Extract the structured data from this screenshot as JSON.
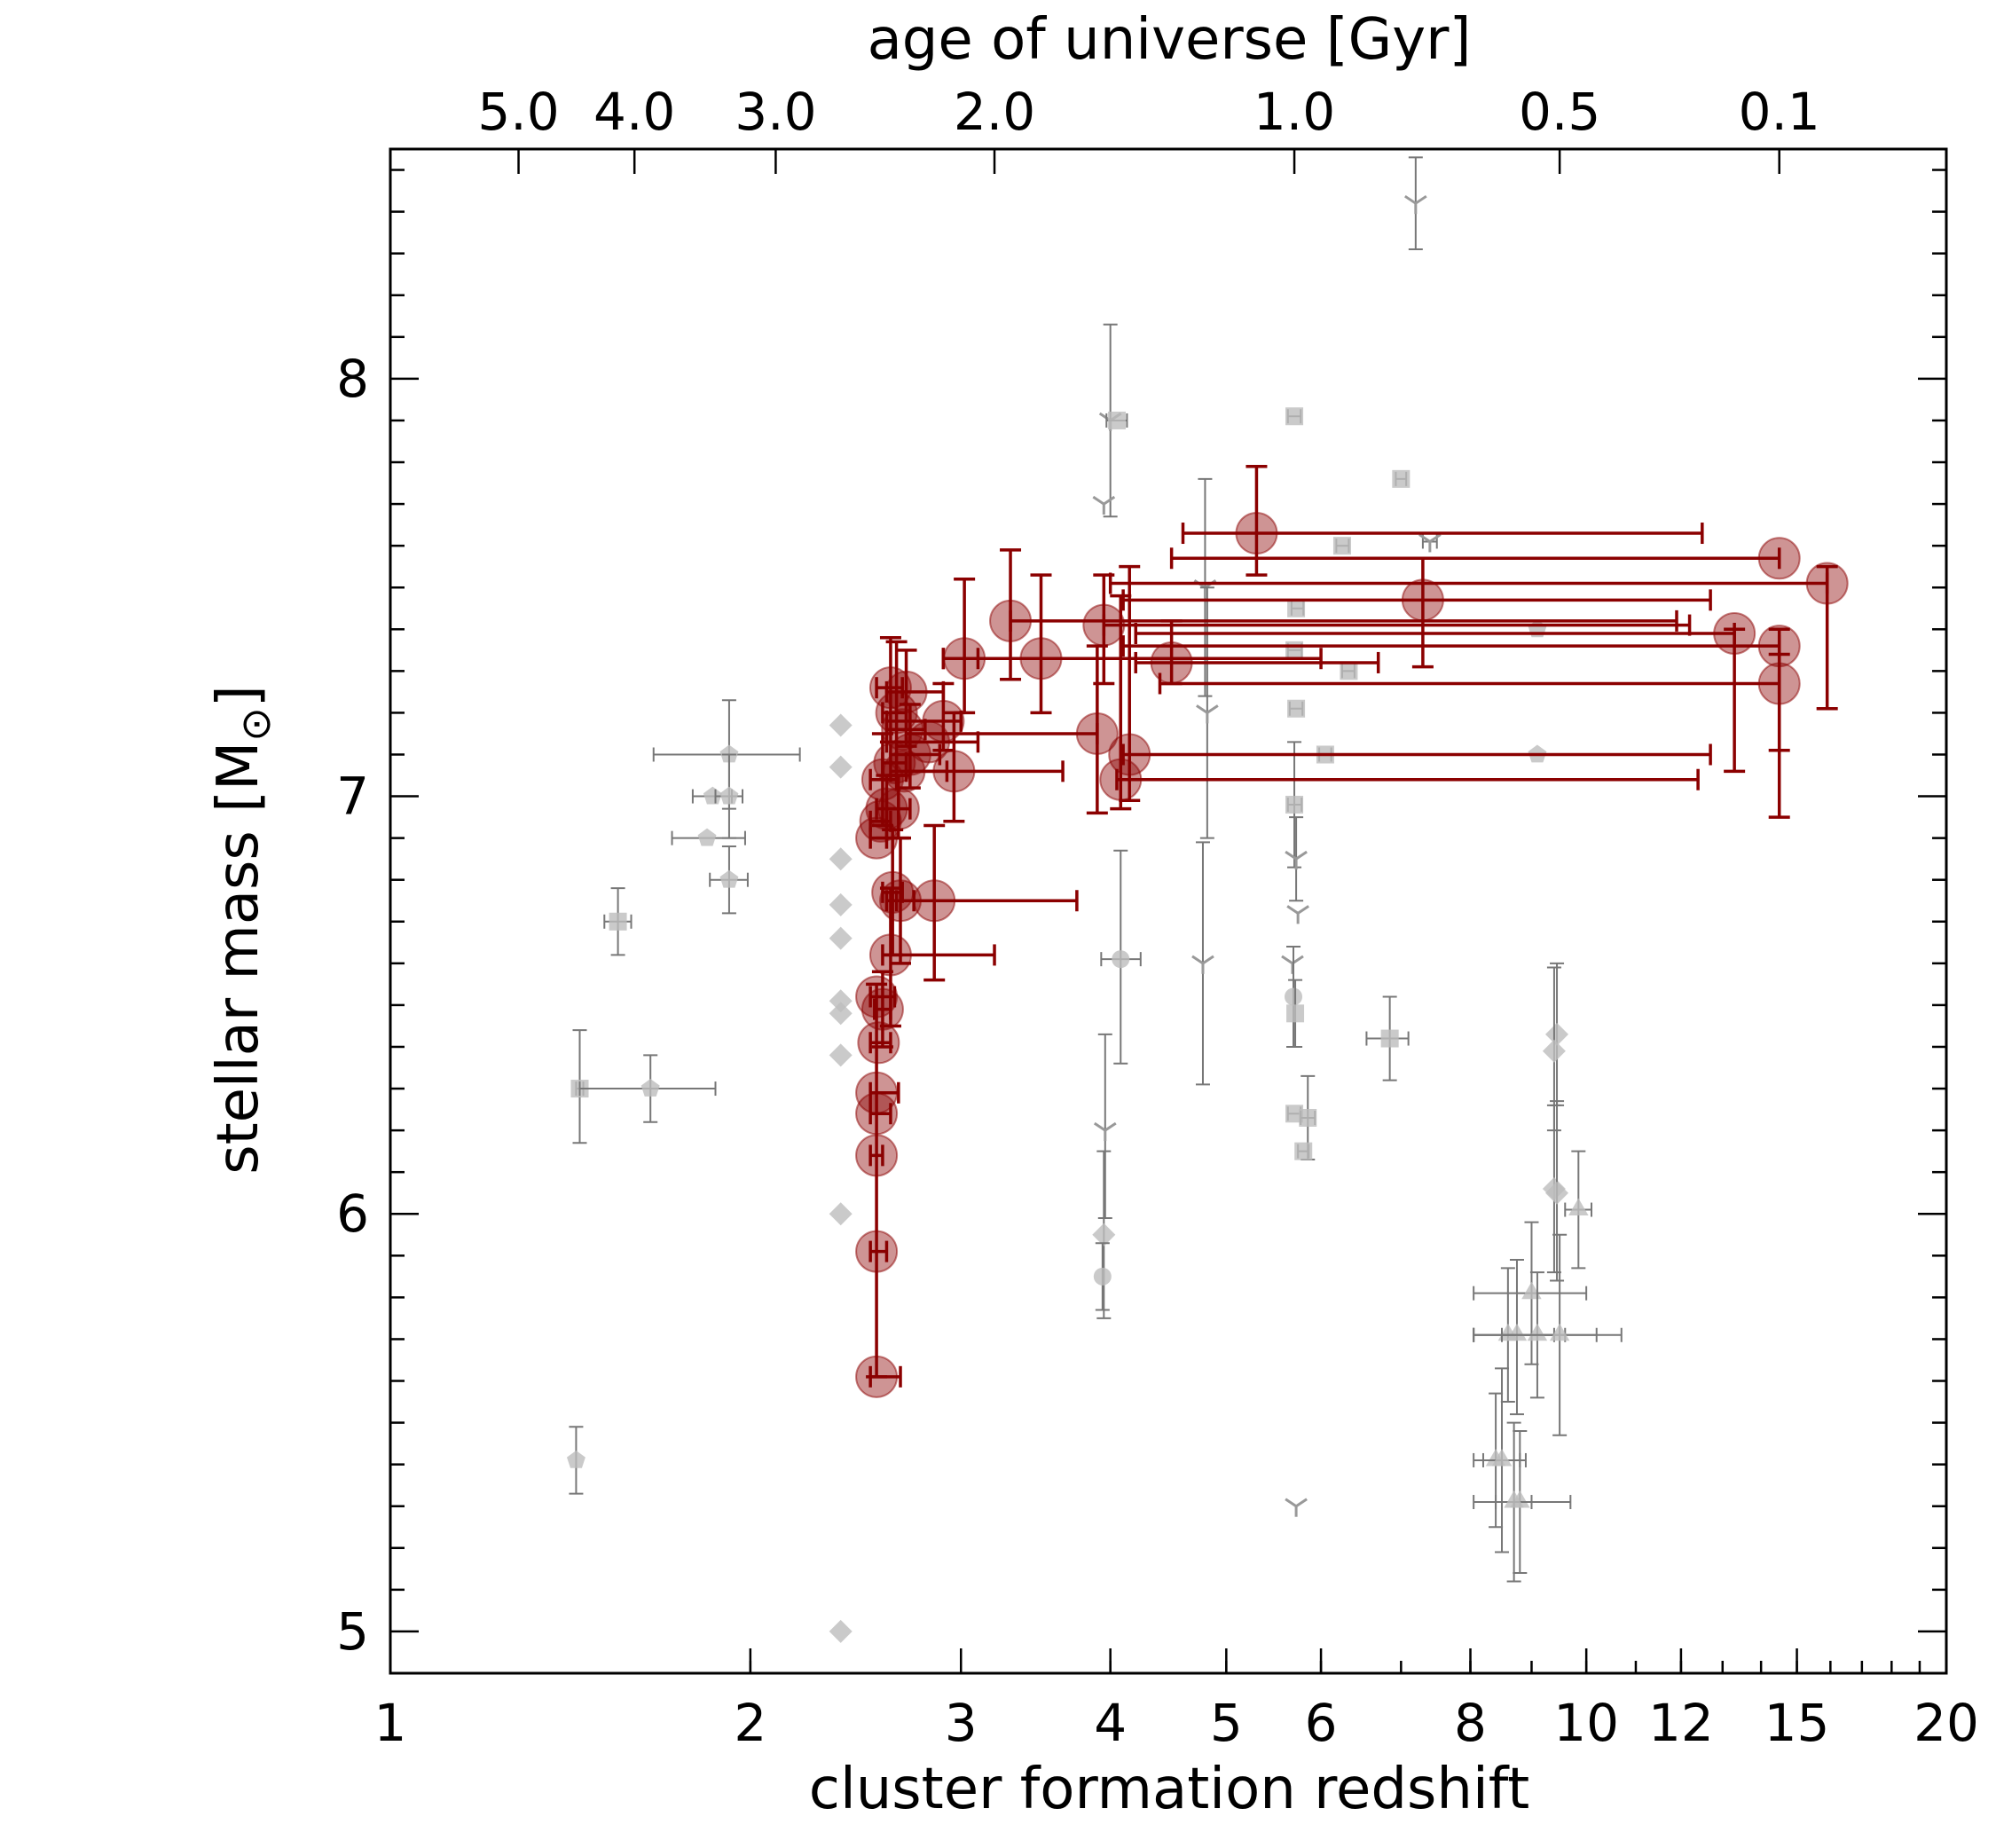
{
  "chart_data": {
    "type": "scatter",
    "x_scale": "log",
    "xlabel": "cluster formation redshift",
    "ylabel": "stellar mass [M",
    "ylabel_symbol": "⊙",
    "ylabel_suffix": "]",
    "top_xlabel": "age of universe [Gyr]",
    "xlim": [
      1,
      20
    ],
    "ylim": [
      4.9,
      8.55
    ],
    "x_ticks": [
      {
        "value": 1,
        "label": "1"
      },
      {
        "value": 2,
        "label": "2"
      },
      {
        "value": 3,
        "label": "3"
      },
      {
        "value": 4,
        "label": "4"
      },
      {
        "value": 5,
        "label": "5"
      },
      {
        "value": 6,
        "label": "6"
      },
      {
        "value": 8,
        "label": "8"
      },
      {
        "value": 10,
        "label": "10"
      },
      {
        "value": 12,
        "label": "12"
      },
      {
        "value": 15,
        "label": "15"
      },
      {
        "value": 20,
        "label": "20"
      }
    ],
    "y_ticks": [
      {
        "value": 5,
        "label": "5"
      },
      {
        "value": 6,
        "label": "6"
      },
      {
        "value": 7,
        "label": "7"
      },
      {
        "value": 8,
        "label": "8"
      }
    ],
    "top_ticks": [
      {
        "z": 1.28,
        "label": "5.0"
      },
      {
        "z": 1.6,
        "label": "4.0"
      },
      {
        "z": 2.1,
        "label": "3.0"
      },
      {
        "z": 3.2,
        "label": "2.0"
      },
      {
        "z": 5.7,
        "label": "1.0"
      },
      {
        "z": 9.5,
        "label": "0.5"
      },
      {
        "z": 14.5,
        "label": "0.1"
      }
    ],
    "series": [
      {
        "name": "comparison-clusters",
        "color": "#999999",
        "points": [
          {
            "x": 1.44,
            "y": 6.3,
            "m": "square",
            "xl": 1.43,
            "xh": 1.45,
            "yl": 6.17,
            "yh": 6.44
          },
          {
            "x": 1.65,
            "y": 6.3,
            "m": "pentagon",
            "xl": 1.44,
            "xh": 1.87,
            "yl": 6.22,
            "yh": 6.38
          },
          {
            "x": 1.43,
            "y": 5.41,
            "m": "pentagon",
            "yl": 5.33,
            "yh": 5.49
          },
          {
            "x": 1.55,
            "y": 6.7,
            "m": "square",
            "xl": 1.51,
            "xh": 1.59,
            "yl": 6.62,
            "yh": 6.78
          },
          {
            "x": 1.92,
            "y": 7.1,
            "m": "pentagon",
            "xl": 1.66,
            "xh": 2.2,
            "yl": 6.97,
            "yh": 7.23
          },
          {
            "x": 1.86,
            "y": 7.0,
            "m": "pentagon",
            "xl": 1.79,
            "xh": 1.93
          },
          {
            "x": 1.92,
            "y": 7.0,
            "m": "pentagon",
            "xl": 1.87,
            "xh": 1.97,
            "yl": 6.9,
            "yh": 7.1
          },
          {
            "x": 1.84,
            "y": 6.9,
            "m": "pentagon",
            "xl": 1.72,
            "xh": 1.98
          },
          {
            "x": 1.92,
            "y": 6.8,
            "m": "pentagon",
            "xl": 1.85,
            "xh": 1.99,
            "yl": 6.72,
            "yh": 6.88
          },
          {
            "x": 2.38,
            "y": 7.17,
            "m": "diamond"
          },
          {
            "x": 2.38,
            "y": 7.07,
            "m": "diamond"
          },
          {
            "x": 2.38,
            "y": 6.85,
            "m": "diamond"
          },
          {
            "x": 2.38,
            "y": 6.74,
            "m": "diamond"
          },
          {
            "x": 2.38,
            "y": 6.66,
            "m": "diamond"
          },
          {
            "x": 2.38,
            "y": 6.51,
            "m": "diamond"
          },
          {
            "x": 2.38,
            "y": 6.48,
            "m": "diamond"
          },
          {
            "x": 2.38,
            "y": 6.38,
            "m": "diamond"
          },
          {
            "x": 2.38,
            "y": 6.0,
            "m": "diamond"
          },
          {
            "x": 2.38,
            "y": 5.0,
            "m": "diamond"
          },
          {
            "x": 4.0,
            "y": 7.9,
            "m": "tri_down",
            "yl": 7.67,
            "yh": 8.13
          },
          {
            "x": 3.95,
            "y": 7.7,
            "m": "tri_down"
          },
          {
            "x": 4.05,
            "y": 7.9,
            "m": "square",
            "xl": 3.97,
            "xh": 4.13
          },
          {
            "x": 4.08,
            "y": 6.61,
            "m": "circle",
            "xl": 3.93,
            "xh": 4.24,
            "yl": 6.36,
            "yh": 6.87
          },
          {
            "x": 3.96,
            "y": 6.2,
            "m": "tri_down",
            "yl": 5.99,
            "yh": 6.43
          },
          {
            "x": 3.95,
            "y": 5.95,
            "m": "diamond",
            "yl": 5.75,
            "yh": 6.15
          },
          {
            "x": 3.94,
            "y": 5.85,
            "m": "circle",
            "yl": 5.77,
            "yh": 5.93
          },
          {
            "x": 4.8,
            "y": 7.5,
            "m": "tri_down",
            "yl": 7.24,
            "yh": 7.76
          },
          {
            "x": 4.82,
            "y": 7.2,
            "m": "tri_down",
            "yl": 6.9,
            "yh": 7.5
          },
          {
            "x": 4.78,
            "y": 6.6,
            "m": "tri_down",
            "yl": 6.31,
            "yh": 6.89
          },
          {
            "x": 5.7,
            "y": 7.91,
            "m": "square",
            "xl": 5.63,
            "xh": 5.77
          },
          {
            "x": 5.72,
            "y": 7.45,
            "m": "square",
            "xl": 5.67,
            "xh": 5.8
          },
          {
            "x": 5.7,
            "y": 7.35,
            "m": "square",
            "xl": 5.63,
            "xh": 5.78
          },
          {
            "x": 5.72,
            "y": 7.21,
            "m": "square",
            "xl": 5.65,
            "xh": 5.79
          },
          {
            "x": 5.7,
            "y": 6.98,
            "m": "square",
            "xl": 5.63,
            "xh": 5.78,
            "yl": 6.83,
            "yh": 7.13
          },
          {
            "x": 5.72,
            "y": 6.85,
            "m": "tri_down",
            "yl": 6.75,
            "yh": 6.95
          },
          {
            "x": 5.74,
            "y": 6.72,
            "m": "tri_down"
          },
          {
            "x": 5.68,
            "y": 6.6,
            "m": "tri_down"
          },
          {
            "x": 5.69,
            "y": 6.52,
            "m": "circle",
            "yl": 6.4,
            "yh": 6.64
          },
          {
            "x": 5.71,
            "y": 6.48,
            "m": "square",
            "yl": 6.4,
            "yh": 6.56
          },
          {
            "x": 5.7,
            "y": 6.24,
            "m": "square",
            "xl": 5.63,
            "xh": 5.77
          },
          {
            "x": 5.85,
            "y": 6.23,
            "m": "square",
            "xl": 5.77,
            "xh": 5.93,
            "yl": 6.13,
            "yh": 6.33
          },
          {
            "x": 5.8,
            "y": 6.15,
            "m": "square",
            "xl": 5.74,
            "xh": 5.86
          },
          {
            "x": 6.05,
            "y": 7.1,
            "m": "square",
            "xl": 5.98,
            "xh": 6.12
          },
          {
            "x": 6.25,
            "y": 7.6,
            "m": "square",
            "xl": 6.18,
            "xh": 6.33
          },
          {
            "x": 6.33,
            "y": 7.3,
            "m": "square",
            "xl": 6.25,
            "xh": 6.4
          },
          {
            "x": 7.0,
            "y": 7.76,
            "m": "square",
            "xl": 6.93,
            "xh": 7.07
          },
          {
            "x": 7.2,
            "y": 8.42,
            "m": "tri_down",
            "yl": 8.31,
            "yh": 8.53
          },
          {
            "x": 7.4,
            "y": 7.61,
            "m": "tri_down",
            "xl": 7.3,
            "xh": 7.5
          },
          {
            "x": 6.85,
            "y": 6.42,
            "m": "square",
            "xl": 6.55,
            "xh": 7.1,
            "yl": 6.32,
            "yh": 6.52
          },
          {
            "x": 9.1,
            "y": 7.4,
            "m": "pentagon"
          },
          {
            "x": 9.1,
            "y": 7.1,
            "m": "pentagon"
          },
          {
            "x": 9.45,
            "y": 6.43,
            "m": "diamond",
            "yl": 6.26,
            "yh": 6.6
          },
          {
            "x": 9.4,
            "y": 6.39,
            "m": "diamond",
            "yl": 6.2,
            "yh": 6.59
          },
          {
            "x": 9.4,
            "y": 6.06,
            "m": "diamond",
            "yl": 5.86,
            "yh": 6.26
          },
          {
            "x": 9.45,
            "y": 6.05,
            "m": "diamond",
            "yl": 5.84,
            "yh": 6.27
          },
          {
            "x": 9.85,
            "y": 6.01,
            "m": "triangle",
            "xl": 9.6,
            "xh": 10.1,
            "yl": 5.87,
            "yh": 6.15
          },
          {
            "x": 9.0,
            "y": 5.81,
            "m": "triangle",
            "xl": 8.05,
            "xh": 10.0,
            "yl": 5.64,
            "yh": 5.98
          },
          {
            "x": 8.6,
            "y": 5.71,
            "m": "triangle",
            "xl": 8.05,
            "xh": 9.4,
            "yl": 5.55,
            "yh": 5.87
          },
          {
            "x": 8.75,
            "y": 5.71,
            "m": "triangle",
            "xl": 8.05,
            "xh": 9.6,
            "yl": 5.52,
            "yh": 5.89
          },
          {
            "x": 9.1,
            "y": 5.71,
            "m": "triangle",
            "xl": 8.05,
            "xh": 10.2,
            "yl": 5.56,
            "yh": 5.86
          },
          {
            "x": 9.5,
            "y": 5.71,
            "m": "triangle",
            "xl": 8.5,
            "xh": 10.7,
            "yl": 5.47,
            "yh": 5.95
          },
          {
            "x": 8.4,
            "y": 5.41,
            "m": "triangle",
            "xl": 8.05,
            "xh": 8.9,
            "yl": 5.25,
            "yh": 5.57
          },
          {
            "x": 8.5,
            "y": 5.41,
            "m": "triangle",
            "xl": 8.2,
            "xh": 8.8,
            "yl": 5.19,
            "yh": 5.63
          },
          {
            "x": 8.8,
            "y": 5.31,
            "m": "triangle",
            "xl": 8.05,
            "xh": 9.7,
            "yl": 5.14,
            "yh": 5.48
          },
          {
            "x": 8.7,
            "y": 5.31,
            "m": "triangle",
            "xl": 8.4,
            "xh": 9.0,
            "yl": 5.12,
            "yh": 5.5
          },
          {
            "x": 5.72,
            "y": 5.3,
            "m": "tri_down"
          }
        ]
      },
      {
        "name": "red-clusters",
        "color": "#8b0000",
        "points": [
          {
            "x": 5.3,
            "y": 7.63,
            "xl": 4.6,
            "xh": 12.5,
            "yl": 7.53,
            "yh": 7.79
          },
          {
            "x": 3.3,
            "y": 7.42,
            "xl": 3.3,
            "xh": 11.9,
            "yl": 7.28,
            "yh": 7.59
          },
          {
            "x": 3.5,
            "y": 7.33,
            "xl": 2.9,
            "xh": 6.0,
            "yl": 7.2,
            "yh": 7.53
          },
          {
            "x": 3.02,
            "y": 7.33,
            "xl": 2.9,
            "xh": 3.1,
            "yl": 7.2,
            "yh": 7.52
          },
          {
            "x": 3.95,
            "y": 7.41,
            "xl": 3.95,
            "xh": 12.2,
            "yl": 7.27,
            "yh": 7.53
          },
          {
            "x": 4.5,
            "y": 7.32,
            "xl": 4.2,
            "xh": 6.7,
            "yl": 7.27,
            "yh": 7.42
          },
          {
            "x": 7.3,
            "y": 7.47,
            "xl": 4.1,
            "xh": 12.7,
            "yl": 7.31,
            "yh": 7.57
          },
          {
            "x": 14.5,
            "y": 7.57,
            "xl": 4.5,
            "xh": 14.5
          },
          {
            "x": 15.9,
            "y": 7.51,
            "xl": 4.0,
            "xh": 15.9,
            "yl": 7.21,
            "yh": 7.55
          },
          {
            "x": 13.3,
            "y": 7.39,
            "xl": 4.2,
            "xh": 13.3,
            "yl": 7.06,
            "yh": 7.4
          },
          {
            "x": 14.5,
            "y": 7.36,
            "xl": 4.1,
            "xh": 14.5,
            "yl": 7.11,
            "yh": 7.4
          },
          {
            "x": 14.5,
            "y": 7.27,
            "xl": 4.4,
            "xh": 14.5,
            "yl": 6.95,
            "yh": 7.34
          },
          {
            "x": 3.9,
            "y": 7.15,
            "xl": 2.7,
            "xh": 3.9,
            "yl": 6.96,
            "yh": 7.36
          },
          {
            "x": 4.15,
            "y": 7.1,
            "xl": 4.1,
            "xh": 12.7,
            "yl": 6.99,
            "yh": 7.55
          },
          {
            "x": 4.08,
            "y": 7.04,
            "xl": 4.05,
            "xh": 12.4,
            "yl": 6.97,
            "yh": 7.48
          },
          {
            "x": 2.96,
            "y": 7.06,
            "xl": 2.7,
            "xh": 3.65,
            "yl": 6.94,
            "yh": 7.2
          },
          {
            "x": 2.9,
            "y": 7.18,
            "xl": 2.6,
            "xh": 3.0,
            "yl": 7.11,
            "yh": 7.27
          },
          {
            "x": 2.82,
            "y": 7.13,
            "xl": 2.6,
            "xh": 3.1
          },
          {
            "x": 2.7,
            "y": 7.25,
            "xl": 2.6,
            "xh": 2.9,
            "yl": 7.12,
            "yh": 7.35
          },
          {
            "x": 2.62,
            "y": 7.26,
            "xl": 2.55,
            "xh": 2.68,
            "yl": 7.13,
            "yh": 7.38
          },
          {
            "x": 2.65,
            "y": 7.2,
            "xl": 2.58,
            "xh": 2.7,
            "yl": 7.05,
            "yh": 7.37
          },
          {
            "x": 2.68,
            "y": 7.16,
            "xl": 2.6,
            "xh": 2.8
          },
          {
            "x": 2.72,
            "y": 7.1,
            "xl": 2.62,
            "xh": 2.88,
            "yl": 7.02,
            "yh": 7.22
          },
          {
            "x": 2.64,
            "y": 7.08,
            "xl": 2.58,
            "xh": 2.7
          },
          {
            "x": 2.69,
            "y": 7.06,
            "xl": 2.62,
            "xh": 2.92
          },
          {
            "x": 2.58,
            "y": 7.04,
            "xl": 2.52,
            "xh": 2.65,
            "yl": 6.93,
            "yh": 7.15
          },
          {
            "x": 2.66,
            "y": 6.97,
            "xl": 2.6,
            "xh": 2.72,
            "yl": 6.9,
            "yh": 7.05
          },
          {
            "x": 2.57,
            "y": 6.94,
            "xl": 2.52,
            "xh": 2.62
          },
          {
            "x": 2.55,
            "y": 6.9,
            "xl": 2.52,
            "xh": 2.6
          },
          {
            "x": 2.6,
            "y": 6.97,
            "xl": 2.55,
            "xh": 2.66,
            "yl": 6.9,
            "yh": 7.05
          },
          {
            "x": 2.85,
            "y": 6.75,
            "xl": 2.65,
            "xh": 3.75,
            "yl": 6.56,
            "yh": 6.93
          },
          {
            "x": 2.63,
            "y": 6.77,
            "xl": 2.58,
            "xh": 2.68,
            "yl": 6.62,
            "yh": 6.92
          },
          {
            "x": 2.67,
            "y": 6.75,
            "xl": 2.6,
            "xh": 2.74,
            "yl": 6.6,
            "yh": 6.9
          },
          {
            "x": 2.62,
            "y": 6.62,
            "xl": 2.58,
            "xh": 3.2,
            "yl": 6.45,
            "yh": 6.78
          },
          {
            "x": 2.55,
            "y": 6.52,
            "xl": 2.52,
            "xh": 2.64
          },
          {
            "x": 2.58,
            "y": 6.49,
            "xl": 2.54,
            "xh": 2.62,
            "yl": 6.4,
            "yh": 6.58
          },
          {
            "x": 2.56,
            "y": 6.41,
            "xl": 2.52,
            "xh": 2.62
          },
          {
            "x": 2.55,
            "y": 6.29,
            "xl": 2.52,
            "xh": 2.66
          },
          {
            "x": 2.55,
            "y": 6.24,
            "xl": 2.52,
            "xh": 2.62
          },
          {
            "x": 2.55,
            "y": 6.14,
            "xl": 2.52,
            "xh": 2.58
          },
          {
            "x": 2.55,
            "y": 5.91,
            "xl": 2.52,
            "xh": 2.6
          },
          {
            "x": 2.55,
            "y": 5.61,
            "xl": 2.52,
            "xh": 2.67,
            "yl": 5.61,
            "yh": 6.55
          }
        ]
      }
    ]
  }
}
